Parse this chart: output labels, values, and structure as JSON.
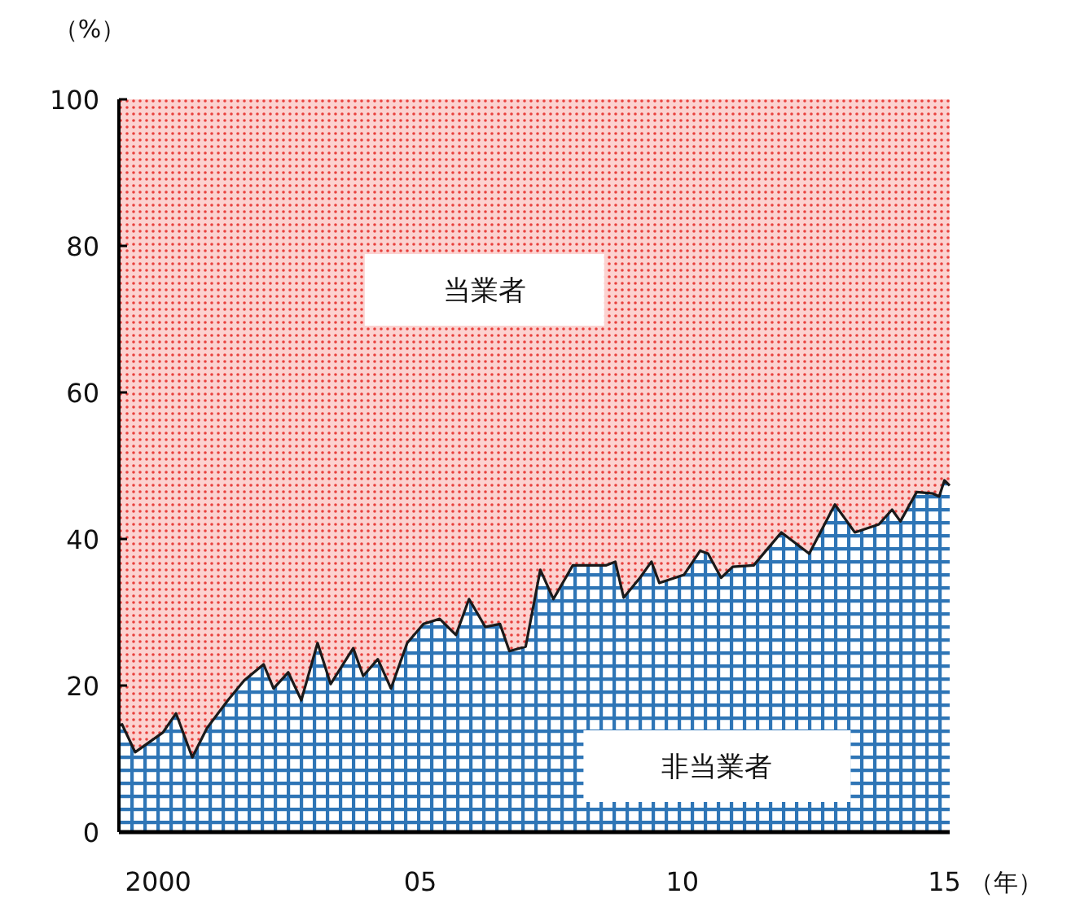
{
  "chart_data": {
    "type": "area",
    "stacked": true,
    "xlabel": "（年）",
    "ylabel": "（%）",
    "x": [
      1999.25,
      1999.31,
      1999.56,
      2000.09,
      2000.34,
      2000.65,
      2000.93,
      2001.33,
      2001.64,
      2002.01,
      2002.2,
      2002.48,
      2002.73,
      2003.04,
      2003.29,
      2003.72,
      2003.91,
      2004.19,
      2004.44,
      2004.75,
      2005.06,
      2005.37,
      2005.68,
      2005.93,
      2006.24,
      2006.52,
      2006.7,
      2007.01,
      2007.29,
      2007.54,
      2007.91,
      2008.54,
      2008.72,
      2008.88,
      2009.19,
      2009.41,
      2009.56,
      2010.03,
      2010.34,
      2010.49,
      2010.74,
      2010.96,
      2011.36,
      2011.89,
      2012.42,
      2012.91,
      2013.29,
      2013.75,
      2014.0,
      2014.16,
      2014.47,
      2014.78,
      2014.9,
      2015.0,
      2015.1
    ],
    "series": [
      {
        "name": "非当業者",
        "color": "#2e75b6",
        "values": [
          14.5,
          14.7,
          10.9,
          13.6,
          16.2,
          10.2,
          14.2,
          18,
          20.7,
          22.9,
          19.6,
          21.8,
          18,
          25.8,
          20.2,
          25.1,
          21.3,
          23.6,
          19.6,
          25.8,
          28.4,
          29.1,
          26.9,
          31.8,
          28,
          28.4,
          24.7,
          25.3,
          35.8,
          31.8,
          36.4,
          36.4,
          36.9,
          32,
          34.7,
          36.9,
          34,
          35.1,
          38.4,
          38,
          34.7,
          36.2,
          36.4,
          40.9,
          38,
          44.7,
          40.9,
          42,
          44,
          42.4,
          46.4,
          46.2,
          45.8,
          48,
          47.3
        ]
      },
      {
        "name": "当業者",
        "color": "#e8403c",
        "values": [
          85.5,
          85.3,
          89.1,
          86.4,
          83.8,
          89.8,
          85.8,
          82,
          79.3,
          77.1,
          80.4,
          78.2,
          82,
          74.2,
          79.8,
          74.9,
          78.7,
          76.4,
          80.4,
          74.2,
          71.6,
          70.9,
          73.1,
          68.2,
          72,
          71.6,
          75.3,
          74.7,
          64.2,
          68.2,
          63.6,
          63.6,
          63.1,
          68,
          65.3,
          63.1,
          66,
          64.9,
          61.6,
          62,
          65.3,
          63.8,
          63.6,
          59.1,
          62,
          55.3,
          59.1,
          58,
          56,
          57.6,
          53.6,
          53.8,
          54.2,
          52,
          52.7
        ]
      }
    ],
    "xlim": [
      1999.25,
      2015.1
    ],
    "xticks": [
      {
        "value": 2000,
        "label": "2000"
      },
      {
        "value": 2005,
        "label": "05"
      },
      {
        "value": 2010,
        "label": "10"
      },
      {
        "value": 2015,
        "label": "15"
      }
    ],
    "ylim": [
      0,
      100
    ],
    "yticks": [
      0,
      20,
      40,
      60,
      80,
      100
    ]
  }
}
